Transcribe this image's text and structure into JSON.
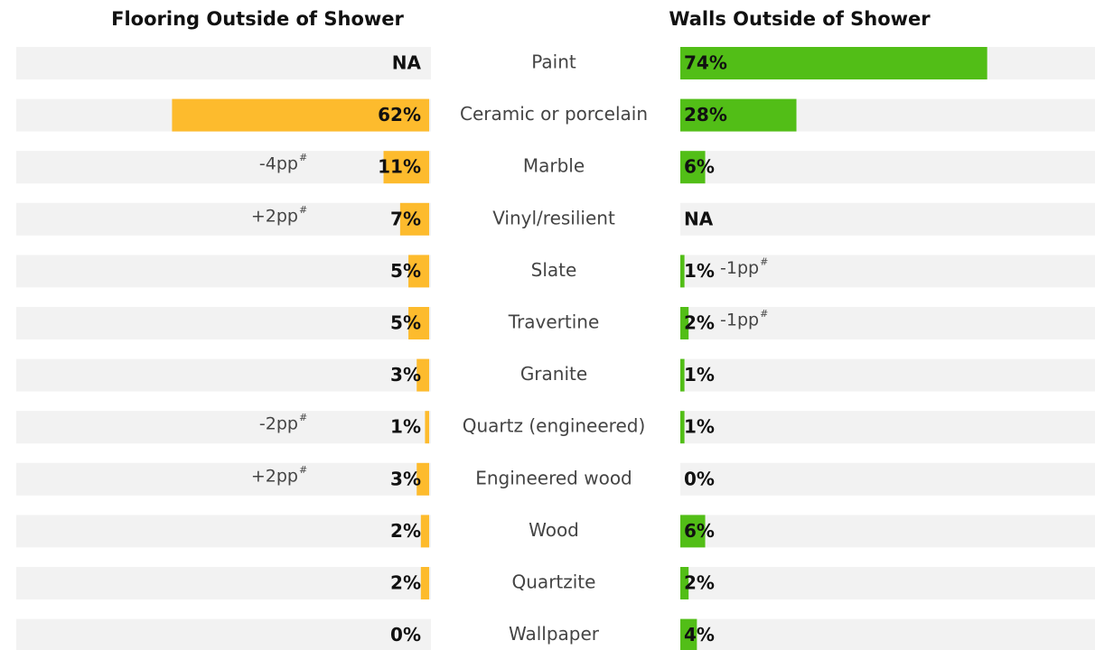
{
  "chart_data": {
    "type": "bar",
    "categories": [
      "Paint",
      "Ceramic or porcelain",
      "Marble",
      "Vinyl/resilient",
      "Slate",
      "Travertine",
      "Granite",
      "Quartz (engineered)",
      "Engineered wood",
      "Wood",
      "Quartzite",
      "Wallpaper"
    ],
    "series": [
      {
        "name": "Flooring Outside of Shower",
        "color": "#fdbb2d",
        "values": [
          null,
          62,
          11,
          7,
          5,
          5,
          3,
          1,
          3,
          2,
          2,
          0
        ],
        "value_labels": [
          "NA",
          "62%",
          "11%",
          "7%",
          "5%",
          "5%",
          "3%",
          "1%",
          "3%",
          "2%",
          "2%",
          "0%"
        ],
        "annotations": [
          null,
          null,
          "-4pp",
          "+2pp",
          null,
          null,
          null,
          "-2pp",
          "+2pp",
          null,
          null,
          null
        ]
      },
      {
        "name": "Walls Outside of Shower",
        "color": "#52be17",
        "values": [
          74,
          28,
          6,
          null,
          1,
          2,
          1,
          1,
          0,
          6,
          2,
          4
        ],
        "value_labels": [
          "74%",
          "28%",
          "6%",
          "NA",
          "1%",
          "2%",
          "1%",
          "1%",
          "0%",
          "6%",
          "2%",
          "4%"
        ],
        "annotations": [
          null,
          null,
          null,
          null,
          "-1pp",
          "-1pp",
          null,
          null,
          null,
          null,
          null,
          null
        ]
      }
    ],
    "annotation_mark": "#",
    "xlim": [
      0,
      100
    ]
  }
}
